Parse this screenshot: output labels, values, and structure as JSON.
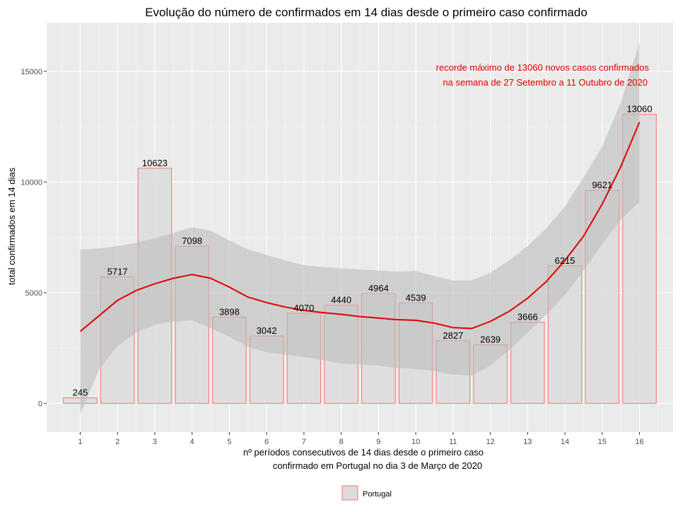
{
  "chart_data": {
    "type": "bar",
    "title": "Evolução do número de confirmados em 14 dias desde o primeiro caso confirmado",
    "xlabel_lines": [
      "nº períodos consecutivos de 14 dias desde o primeiro caso",
      "confirmado em Portugal no dia 3 de Março de 2020"
    ],
    "ylabel": "total confirmados em 14 dias",
    "categories": [
      "1",
      "2",
      "3",
      "4",
      "5",
      "6",
      "7",
      "8",
      "9",
      "10",
      "11",
      "12",
      "13",
      "14",
      "15",
      "16"
    ],
    "series": [
      {
        "name": "Portugal",
        "values": [
          245,
          5717,
          10623,
          7098,
          3898,
          3042,
          4070,
          4440,
          4964,
          4539,
          2827,
          2639,
          3666,
          6215,
          9621,
          13060
        ]
      }
    ],
    "smooth_line": {
      "x": [
        1,
        1.5,
        2,
        2.5,
        3,
        3.5,
        4,
        4.5,
        5,
        5.5,
        6,
        6.5,
        7,
        7.5,
        8,
        8.5,
        9,
        9.5,
        10,
        10.5,
        11,
        11.5,
        12,
        12.5,
        13,
        13.5,
        14,
        14.5,
        15,
        15.5,
        16
      ],
      "y": [
        3250,
        3950,
        4650,
        5100,
        5400,
        5650,
        5820,
        5650,
        5250,
        4800,
        4550,
        4350,
        4200,
        4100,
        4020,
        3920,
        3850,
        3780,
        3750,
        3620,
        3420,
        3380,
        3700,
        4150,
        4750,
        5500,
        6450,
        7550,
        9000,
        10700,
        12700
      ]
    },
    "confidence_band": {
      "upper": [
        6950,
        7000,
        7100,
        7250,
        7450,
        7700,
        7950,
        7800,
        7350,
        6950,
        6700,
        6450,
        6250,
        6150,
        6100,
        6050,
        6000,
        5950,
        5980,
        5750,
        5550,
        5550,
        5900,
        6450,
        7100,
        7900,
        8900,
        10200,
        11600,
        13600,
        16300
      ],
      "lower": [
        -500,
        1500,
        2600,
        3200,
        3550,
        3700,
        3750,
        3400,
        3000,
        2550,
        2300,
        2200,
        2100,
        1950,
        1800,
        1750,
        1700,
        1600,
        1550,
        1450,
        1300,
        1250,
        1700,
        2400,
        3200,
        4000,
        4900,
        6000,
        7200,
        8300,
        9100
      ]
    },
    "annotation_lines": [
      "recorde máximo de 13060 novos casos confirmados",
      "na semana de 27 Setembro a 11 Outubro de 2020"
    ],
    "ylim": [
      -1300,
      17200
    ],
    "xlim": [
      0.1,
      16.9
    ],
    "y_ticks": [
      0,
      5000,
      10000,
      15000
    ],
    "grid": true,
    "legend_position": "bottom",
    "colors": {
      "bar_fill": "#dcdcdc",
      "bar_outline": "#f8766d",
      "line": "#e00000",
      "band": "#bdbdbd",
      "panel": "#ebebeb",
      "annotation": "#e00000"
    }
  }
}
